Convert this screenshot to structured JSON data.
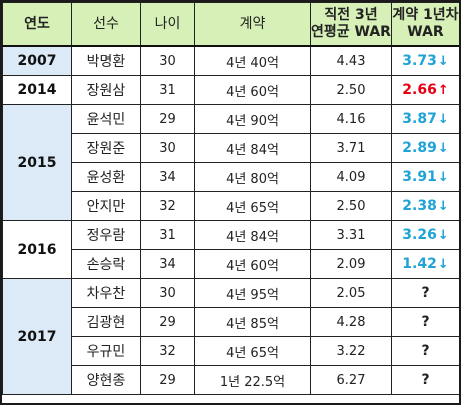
{
  "headers": {
    "year": "연도",
    "player": "선수",
    "age": "나이",
    "contract": "계약",
    "prior_war": "직전 3년\n연평균 WAR",
    "first_year_war": "계약 1년차\nWAR"
  },
  "colors": {
    "header_bg": "#d6f0b7",
    "year_blue_bg": "#dbeaf6",
    "decline": "#1fa3d6",
    "increase": "#e60012",
    "border": "#222222"
  },
  "groups": [
    {
      "year": "2007",
      "shade": "blue",
      "rows": [
        {
          "player": "박명환",
          "age": "30",
          "contract": "4년 40억",
          "prior_war": "4.43",
          "first_year_war": "3.73",
          "trend": "down"
        }
      ]
    },
    {
      "year": "2014",
      "shade": "white",
      "rows": [
        {
          "player": "장원삼",
          "age": "31",
          "contract": "4년 60억",
          "prior_war": "2.50",
          "first_year_war": "2.66",
          "trend": "up"
        }
      ]
    },
    {
      "year": "2015",
      "shade": "blue",
      "rows": [
        {
          "player": "윤석민",
          "age": "29",
          "contract": "4년 90억",
          "prior_war": "4.16",
          "first_year_war": "3.87",
          "trend": "down"
        },
        {
          "player": "장원준",
          "age": "30",
          "contract": "4년 84억",
          "prior_war": "3.71",
          "first_year_war": "2.89",
          "trend": "down"
        },
        {
          "player": "윤성환",
          "age": "34",
          "contract": "4년 80억",
          "prior_war": "4.09",
          "first_year_war": "3.91",
          "trend": "down"
        },
        {
          "player": "안지만",
          "age": "32",
          "contract": "4년 65억",
          "prior_war": "2.50",
          "first_year_war": "2.38",
          "trend": "down"
        }
      ]
    },
    {
      "year": "2016",
      "shade": "white",
      "rows": [
        {
          "player": "정우람",
          "age": "31",
          "contract": "4년 84억",
          "prior_war": "3.31",
          "first_year_war": "3.26",
          "trend": "down"
        },
        {
          "player": "손승락",
          "age": "34",
          "contract": "4년 60억",
          "prior_war": "2.09",
          "first_year_war": "1.42",
          "trend": "down"
        }
      ]
    },
    {
      "year": "2017",
      "shade": "blue",
      "rows": [
        {
          "player": "차우찬",
          "age": "30",
          "contract": "4년 95억",
          "prior_war": "2.05",
          "first_year_war": "?",
          "trend": "none"
        },
        {
          "player": "김광현",
          "age": "29",
          "contract": "4년 85억",
          "prior_war": "4.28",
          "first_year_war": "?",
          "trend": "none"
        },
        {
          "player": "우규민",
          "age": "32",
          "contract": "4년 65억",
          "prior_war": "3.22",
          "first_year_war": "?",
          "trend": "none"
        },
        {
          "player": "양현종",
          "age": "29",
          "contract": "1년 22.5억",
          "prior_war": "6.27",
          "first_year_war": "?",
          "trend": "none"
        }
      ]
    }
  ]
}
